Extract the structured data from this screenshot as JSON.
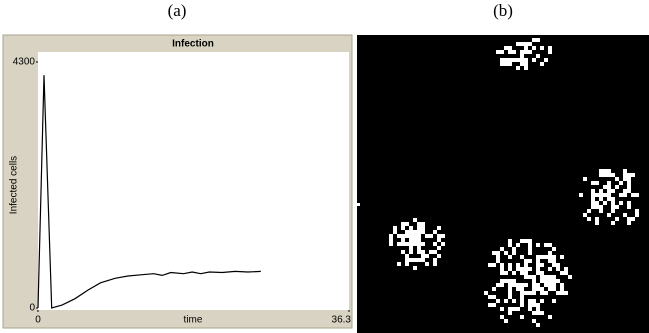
{
  "panel_labels": [
    "(a)",
    "(b)"
  ],
  "chart_data": {
    "type": "line",
    "title": "Infection",
    "x_label": "time",
    "y_label": "Infected cells",
    "x": [
      0,
      0.7,
      1.6,
      2.8,
      4.3,
      5.9,
      7.3,
      9,
      10.5,
      12,
      13.5,
      14.5,
      15.5,
      17,
      18,
      19,
      20,
      21.5,
      23,
      24.5,
      26
    ],
    "values": [
      0,
      4070,
      0,
      50,
      160,
      320,
      440,
      520,
      560,
      580,
      600,
      570,
      620,
      600,
      630,
      600,
      630,
      620,
      640,
      630,
      640
    ],
    "color": "#000000",
    "xlim": [
      0,
      36.3
    ],
    "ylim": [
      0,
      4300
    ],
    "xticks": [
      0,
      36.3
    ],
    "yticks": [
      0,
      4300
    ]
  }
}
